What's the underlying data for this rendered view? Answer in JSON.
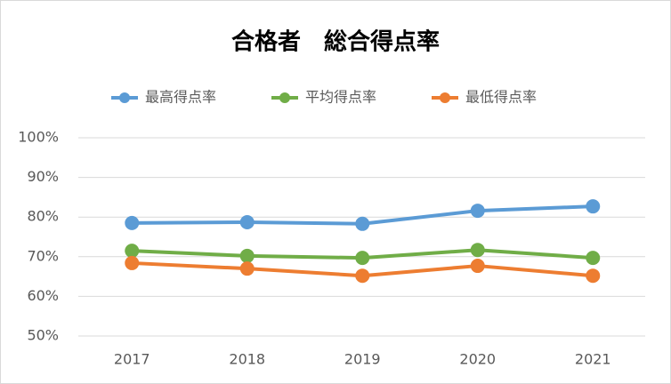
{
  "chart_data": {
    "type": "line",
    "title": "合格者　総合得点率",
    "categories": [
      "2017",
      "2018",
      "2019",
      "2020",
      "2021"
    ],
    "series": [
      {
        "name": "最高得点率",
        "color": "#5b9bd5",
        "values": [
          78.5,
          78.7,
          78.3,
          81.6,
          82.7
        ]
      },
      {
        "name": "平均得点率",
        "color": "#70ad47",
        "values": [
          71.5,
          70.2,
          69.7,
          71.7,
          69.7
        ]
      },
      {
        "name": "最低得点率",
        "color": "#ed7d31",
        "values": [
          68.4,
          67.0,
          65.2,
          67.7,
          65.2
        ]
      }
    ],
    "ylim": [
      50,
      100
    ],
    "yticks": [
      {
        "value": 50,
        "label": "50%"
      },
      {
        "value": 60,
        "label": "60%"
      },
      {
        "value": 70,
        "label": "70%"
      },
      {
        "value": 80,
        "label": "80%"
      },
      {
        "value": 90,
        "label": "90%"
      },
      {
        "value": 100,
        "label": "100%"
      }
    ],
    "grid": true,
    "legend": "top"
  }
}
